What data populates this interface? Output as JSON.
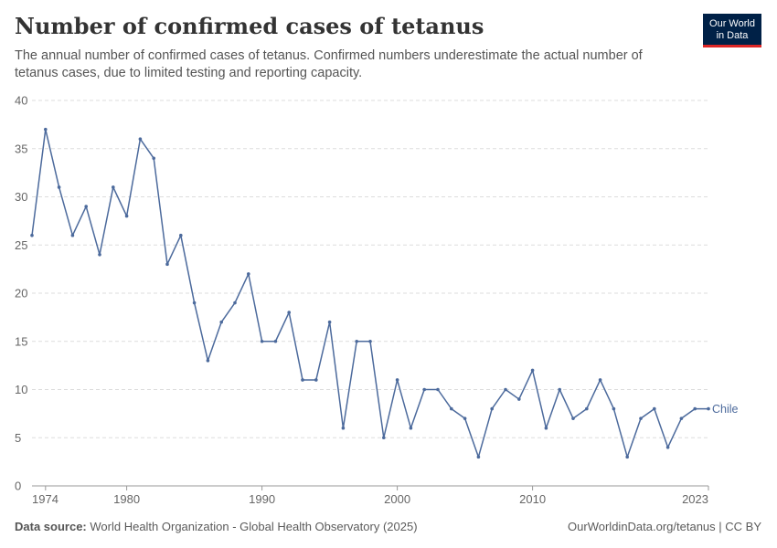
{
  "header": {
    "title": "Number of confirmed cases of tetanus",
    "subtitle": "The annual number of confirmed cases of tetanus. Confirmed numbers underestimate the actual number of tetanus cases, due to limited testing and reporting capacity.",
    "logo_line1": "Our World",
    "logo_line2": "in Data"
  },
  "footer": {
    "source_label": "Data source:",
    "source_text": "World Health Organization - Global Health Observatory (2025)",
    "url_text": "OurWorldinData.org/tetanus | CC BY"
  },
  "colors": {
    "series": "#4c6a9c",
    "grid": "#dddddd",
    "axis": "#999999",
    "logo_bg": "#002147",
    "logo_accent": "#dc2626"
  },
  "chart_data": {
    "type": "line",
    "title": "Number of confirmed cases of tetanus",
    "xlabel": "",
    "ylabel": "",
    "xlim": [
      1973,
      2023
    ],
    "ylim": [
      0,
      40
    ],
    "y_ticks": [
      0,
      5,
      10,
      15,
      20,
      25,
      30,
      35,
      40
    ],
    "x_ticks": [
      1974,
      1980,
      1990,
      2000,
      2010,
      2023
    ],
    "grid": "horizontal dashed",
    "legend": "inline label at end of line",
    "series": [
      {
        "name": "Chile",
        "x": [
          1973,
          1974,
          1975,
          1976,
          1977,
          1978,
          1979,
          1980,
          1981,
          1982,
          1983,
          1984,
          1985,
          1986,
          1987,
          1988,
          1989,
          1990,
          1991,
          1992,
          1993,
          1994,
          1995,
          1996,
          1997,
          1998,
          1999,
          2000,
          2001,
          2002,
          2003,
          2004,
          2005,
          2006,
          2007,
          2008,
          2009,
          2010,
          2011,
          2012,
          2013,
          2014,
          2015,
          2016,
          2017,
          2018,
          2019,
          2020,
          2021,
          2022,
          2023
        ],
        "values": [
          26,
          37,
          31,
          26,
          29,
          24,
          31,
          28,
          36,
          34,
          23,
          26,
          19,
          13,
          17,
          19,
          22,
          15,
          15,
          18,
          11,
          11,
          17,
          6,
          15,
          15,
          5,
          11,
          6,
          10,
          10,
          8,
          7,
          3,
          8,
          10,
          9,
          12,
          6,
          10,
          7,
          8,
          11,
          8,
          3,
          7,
          8,
          4,
          7,
          8,
          8
        ]
      }
    ]
  }
}
